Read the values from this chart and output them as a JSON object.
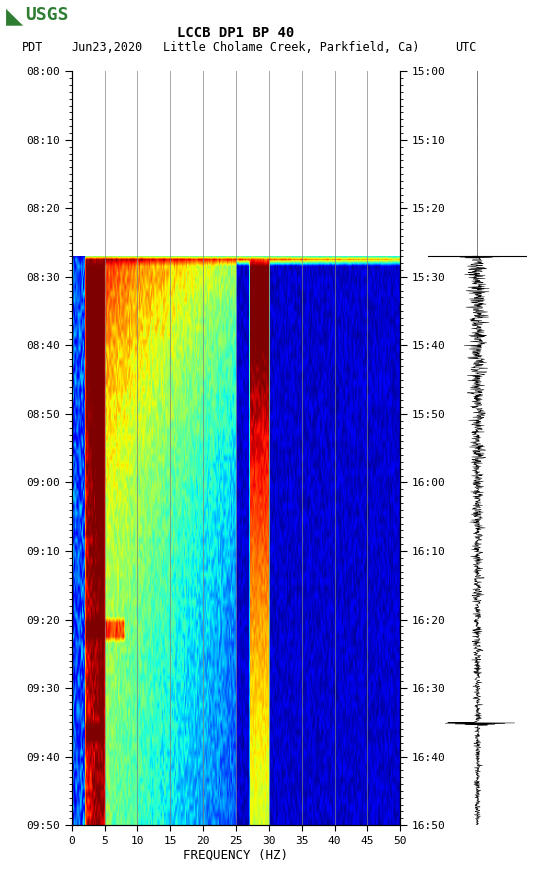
{
  "title_line1": "LCCB DP1 BP 40",
  "title_line2_left": "PDT",
  "title_line2_date": "Jun23,2020",
  "title_line2_loc": "Little Cholame Creek, Parkfield, Ca)",
  "title_line2_right": "UTC",
  "left_yticks": [
    "08:00",
    "08:10",
    "08:20",
    "08:30",
    "08:40",
    "08:50",
    "09:00",
    "09:10",
    "09:20",
    "09:30",
    "09:40",
    "09:50"
  ],
  "right_yticks": [
    "15:00",
    "15:10",
    "15:20",
    "15:30",
    "15:40",
    "15:50",
    "16:00",
    "16:10",
    "16:20",
    "16:30",
    "16:40",
    "16:50"
  ],
  "xticks": [
    0,
    5,
    10,
    15,
    20,
    25,
    30,
    35,
    40,
    45,
    50
  ],
  "xlabel": "FREQUENCY (HZ)",
  "freq_min": 0,
  "freq_max": 50,
  "time_steps": 110,
  "freq_steps": 300,
  "pre_event_rows": 27,
  "bg_color": "white",
  "spectrogram_cmap": "jet",
  "seismogram_color": "black",
  "grid_color": "gray",
  "grid_alpha": 0.7,
  "vgrid_freqs": [
    5,
    10,
    15,
    20,
    25,
    30,
    35,
    40,
    45
  ]
}
